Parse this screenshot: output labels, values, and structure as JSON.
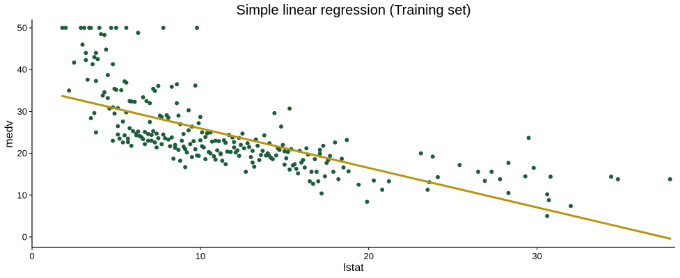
{
  "chart_data": {
    "type": "scatter",
    "title": "Simple linear regression (Training set)",
    "xlabel": "lstat",
    "ylabel": "medv",
    "xlim": [
      0,
      38.2
    ],
    "ylim": [
      -2.5,
      52
    ],
    "xticks": [
      0,
      10,
      20,
      30
    ],
    "yticks": [
      0,
      10,
      20,
      30,
      40,
      50
    ],
    "grid": false,
    "legend": "none",
    "colors": {
      "points": "#1b5e3a",
      "line": "#b8960c",
      "axis": "#000000"
    },
    "series": [
      {
        "type": "scatter",
        "points": [
          [
            1.8,
            50
          ],
          [
            2.0,
            50
          ],
          [
            2.2,
            35
          ],
          [
            2.5,
            41.7
          ],
          [
            2.9,
            50
          ],
          [
            3.0,
            46
          ],
          [
            3.1,
            50
          ],
          [
            3.2,
            44
          ],
          [
            3.2,
            42.3
          ],
          [
            3.3,
            37.6
          ],
          [
            3.4,
            50
          ],
          [
            3.5,
            28.4
          ],
          [
            3.5,
            50
          ],
          [
            3.6,
            41.3
          ],
          [
            3.7,
            43
          ],
          [
            3.8,
            37.3
          ],
          [
            3.8,
            25
          ],
          [
            3.7,
            29.6
          ],
          [
            3.8,
            44
          ],
          [
            3.9,
            42.5
          ],
          [
            4.0,
            50
          ],
          [
            4.1,
            48.5
          ],
          [
            4.3,
            48.3
          ],
          [
            4.2,
            33.8
          ],
          [
            4.3,
            34.6
          ],
          [
            4.4,
            44.8
          ],
          [
            4.5,
            33.2
          ],
          [
            4.5,
            38.7
          ],
          [
            4.6,
            30.7
          ],
          [
            4.7,
            50
          ],
          [
            4.8,
            41.3
          ],
          [
            4.8,
            31.0
          ],
          [
            4.8,
            23.0
          ],
          [
            4.9,
            35.4
          ],
          [
            4.9,
            29.5
          ],
          [
            5.0,
            50
          ],
          [
            5.0,
            35.2
          ],
          [
            5.1,
            24.5
          ],
          [
            5.1,
            30.8
          ],
          [
            5.1,
            26.5
          ],
          [
            5.2,
            23.5
          ],
          [
            5.3,
            35.1
          ],
          [
            5.4,
            27.6
          ],
          [
            5.4,
            22.6
          ],
          [
            5.5,
            37.2
          ],
          [
            5.5,
            24.3
          ],
          [
            5.6,
            50
          ],
          [
            5.6,
            29.8
          ],
          [
            5.6,
            36.9
          ],
          [
            5.7,
            23.5
          ],
          [
            5.7,
            22.7
          ],
          [
            5.8,
            32.5
          ],
          [
            5.8,
            26.0
          ],
          [
            5.9,
            32.4
          ],
          [
            5.9,
            21.8
          ],
          [
            6.0,
            25.3
          ],
          [
            6.1,
            32.3
          ],
          [
            6.2,
            24.7
          ],
          [
            6.2,
            24.3
          ],
          [
            6.3,
            48.8
          ],
          [
            6.3,
            25.2
          ],
          [
            6.4,
            24.1
          ],
          [
            6.5,
            23.9
          ],
          [
            6.6,
            33.4
          ],
          [
            6.6,
            23.4
          ],
          [
            6.7,
            22.2
          ],
          [
            6.7,
            25.1
          ],
          [
            6.8,
            32.5
          ],
          [
            6.9,
            24.6
          ],
          [
            6.9,
            23.0
          ],
          [
            7.0,
            27.5
          ],
          [
            7.0,
            32.0
          ],
          [
            7.1,
            24.4
          ],
          [
            7.1,
            23.0
          ],
          [
            7.2,
            35.4
          ],
          [
            7.2,
            25.3
          ],
          [
            7.3,
            34.9
          ],
          [
            7.3,
            22.6
          ],
          [
            7.4,
            21.4
          ],
          [
            7.4,
            24.7
          ],
          [
            7.5,
            23.6
          ],
          [
            7.5,
            36.1
          ],
          [
            7.6,
            29.0
          ],
          [
            7.7,
            28.7
          ],
          [
            7.7,
            22.2
          ],
          [
            7.8,
            24.5
          ],
          [
            7.8,
            50
          ],
          [
            7.9,
            23.6
          ],
          [
            8.0,
            29.1
          ],
          [
            8.1,
            28.5
          ],
          [
            8.1,
            23.3
          ],
          [
            8.2,
            21.7
          ],
          [
            8.3,
            23.8
          ],
          [
            8.3,
            35.9
          ],
          [
            8.4,
            18.7
          ],
          [
            8.5,
            22.0
          ],
          [
            8.5,
            21.3
          ],
          [
            8.6,
            32.0
          ],
          [
            8.6,
            36.5
          ],
          [
            8.7,
            29.0
          ],
          [
            8.7,
            20.8
          ],
          [
            8.8,
            27.0
          ],
          [
            8.8,
            18.2
          ],
          [
            8.9,
            23.0
          ],
          [
            9.0,
            21.6
          ],
          [
            9.0,
            24.6
          ],
          [
            9.1,
            21.0
          ],
          [
            9.1,
            16.7
          ],
          [
            9.2,
            20.2
          ],
          [
            9.3,
            30.3
          ],
          [
            9.3,
            25.5
          ],
          [
            9.4,
            22.2
          ],
          [
            9.5,
            19.1
          ],
          [
            9.5,
            26.4
          ],
          [
            9.6,
            22.9
          ],
          [
            9.7,
            21.0
          ],
          [
            9.7,
            36.2
          ],
          [
            9.8,
            50
          ],
          [
            9.8,
            19.5
          ],
          [
            9.9,
            27.2
          ],
          [
            9.9,
            19.4
          ],
          [
            10.0,
            28.7
          ],
          [
            10.0,
            23.1
          ],
          [
            10.1,
            25.0
          ],
          [
            10.1,
            21.7
          ],
          [
            10.2,
            21.4
          ],
          [
            10.3,
            18.6
          ],
          [
            10.3,
            23.9
          ],
          [
            10.4,
            24.8
          ],
          [
            10.5,
            20.3
          ],
          [
            10.6,
            20.0
          ],
          [
            10.6,
            25.0
          ],
          [
            10.7,
            22.8
          ],
          [
            10.8,
            19.3
          ],
          [
            10.9,
            23.0
          ],
          [
            10.9,
            18.5
          ],
          [
            11.0,
            20.7
          ],
          [
            11.1,
            22.9
          ],
          [
            11.2,
            19.8
          ],
          [
            11.2,
            20.0
          ],
          [
            11.3,
            18.2
          ],
          [
            11.4,
            23.1
          ],
          [
            11.5,
            17.4
          ],
          [
            11.5,
            22.5
          ],
          [
            11.6,
            20.4
          ],
          [
            11.7,
            24.4
          ],
          [
            11.8,
            20.3
          ],
          [
            11.9,
            23.8
          ],
          [
            12.0,
            21.4
          ],
          [
            12.0,
            22.7
          ],
          [
            12.1,
            20.2
          ],
          [
            12.2,
            20.7
          ],
          [
            12.3,
            23.7
          ],
          [
            12.3,
            19.4
          ],
          [
            12.4,
            22.0
          ],
          [
            12.5,
            24.7
          ],
          [
            12.6,
            21.2
          ],
          [
            12.7,
            15.6
          ],
          [
            12.8,
            22.4
          ],
          [
            12.9,
            21.5
          ],
          [
            13.0,
            19.1
          ],
          [
            13.1,
            17.8
          ],
          [
            13.1,
            20.6
          ],
          [
            13.2,
            16.8
          ],
          [
            13.3,
            23.3
          ],
          [
            13.4,
            21.8
          ],
          [
            13.5,
            18.4
          ],
          [
            13.6,
            19.6
          ],
          [
            13.7,
            20.6
          ],
          [
            13.8,
            24.3
          ],
          [
            13.9,
            19.5
          ],
          [
            14.0,
            20.0
          ],
          [
            14.1,
            19.4
          ],
          [
            14.1,
            22.4
          ],
          [
            14.2,
            18.9
          ],
          [
            14.3,
            18.6
          ],
          [
            14.4,
            29.6
          ],
          [
            14.5,
            19.5
          ],
          [
            14.6,
            21.2
          ],
          [
            14.7,
            20.8
          ],
          [
            14.8,
            26.4
          ],
          [
            14.9,
            22.0
          ],
          [
            15.0,
            20.5
          ],
          [
            15.0,
            17.3
          ],
          [
            15.1,
            18.8
          ],
          [
            15.2,
            20.3
          ],
          [
            15.3,
            30.7
          ],
          [
            15.3,
            16.1
          ],
          [
            15.4,
            21.0
          ],
          [
            15.5,
            17.1
          ],
          [
            15.6,
            17.4
          ],
          [
            15.7,
            16.3
          ],
          [
            15.8,
            15.2
          ],
          [
            15.9,
            20.6
          ],
          [
            16.0,
            17.8
          ],
          [
            16.1,
            18.4
          ],
          [
            16.2,
            16.6
          ],
          [
            16.3,
            21.2
          ],
          [
            16.4,
            19.7
          ],
          [
            16.5,
            13.3
          ],
          [
            16.6,
            15.6
          ],
          [
            16.7,
            12.7
          ],
          [
            16.8,
            18.6
          ],
          [
            16.9,
            15.6
          ],
          [
            17.0,
            13.3
          ],
          [
            17.1,
            19.9
          ],
          [
            17.1,
            20.8
          ],
          [
            17.2,
            10.4
          ],
          [
            17.3,
            21.8
          ],
          [
            17.4,
            14.5
          ],
          [
            17.5,
            17.7
          ],
          [
            17.6,
            18.4
          ],
          [
            17.7,
            19.4
          ],
          [
            17.9,
            15.6
          ],
          [
            18.0,
            22.6
          ],
          [
            18.2,
            13.8
          ],
          [
            18.4,
            18.7
          ],
          [
            18.5,
            16.6
          ],
          [
            18.7,
            23.2
          ],
          [
            18.8,
            15.7
          ],
          [
            19.4,
            12.5
          ],
          [
            19.9,
            8.4
          ],
          [
            20.3,
            13.5
          ],
          [
            20.8,
            11.3
          ],
          [
            21.2,
            13.3
          ],
          [
            23.1,
            20.0
          ],
          [
            23.5,
            11.3
          ],
          [
            23.6,
            13.1
          ],
          [
            23.8,
            19.2
          ],
          [
            24.1,
            14.3
          ],
          [
            25.4,
            17.2
          ],
          [
            26.5,
            15.6
          ],
          [
            26.9,
            13.4
          ],
          [
            27.3,
            15.6
          ],
          [
            27.8,
            13.8
          ],
          [
            28.3,
            10.5
          ],
          [
            28.3,
            17.7
          ],
          [
            29.3,
            14.5
          ],
          [
            29.5,
            23.7
          ],
          [
            29.8,
            16.5
          ],
          [
            30.6,
            5.0
          ],
          [
            30.6,
            10.2
          ],
          [
            30.7,
            8.8
          ],
          [
            30.8,
            14.4
          ],
          [
            32.0,
            7.4
          ],
          [
            34.4,
            14.4
          ],
          [
            34.8,
            13.8
          ],
          [
            37.9,
            13.8
          ]
        ]
      },
      {
        "type": "line",
        "name": "",
        "points": [
          [
            1.8,
            33.7
          ],
          [
            37.9,
            -0.4
          ]
        ]
      }
    ]
  }
}
